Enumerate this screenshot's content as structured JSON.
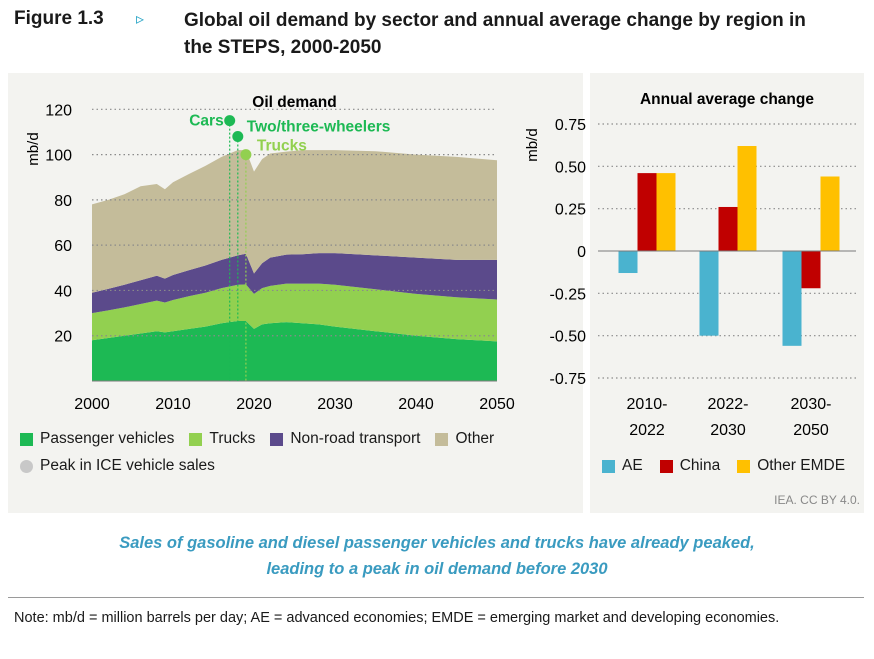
{
  "figure": {
    "label": "Figure 1.3",
    "arrow": "▹",
    "title": "Global oil demand by sector and annual average change by region in the STEPS, 2000-2050"
  },
  "chart_data": [
    {
      "type": "area",
      "title": "Oil demand",
      "ylabel": "mb/d",
      "ylim": [
        0,
        125
      ],
      "xlim": [
        2000,
        2050
      ],
      "yticks": [
        20,
        40,
        60,
        80,
        100,
        120
      ],
      "xticks": [
        2000,
        2010,
        2020,
        2030,
        2040,
        2050
      ],
      "grid": "horizontal dotted",
      "x": [
        2000,
        2002,
        2004,
        2006,
        2008,
        2009,
        2010,
        2012,
        2014,
        2016,
        2018,
        2019,
        2020,
        2021,
        2022,
        2024,
        2026,
        2028,
        2030,
        2035,
        2040,
        2045,
        2050
      ],
      "series": [
        {
          "name": "Passenger vehicles",
          "color": "#1db954",
          "values": [
            18,
            19,
            20,
            21,
            22,
            21.5,
            22,
            23,
            24,
            25.5,
            26.5,
            26.5,
            23,
            25,
            25.5,
            26,
            25.5,
            25,
            24,
            22,
            20,
            18.5,
            17.5
          ]
        },
        {
          "name": "Trucks",
          "color": "#92d050",
          "values": [
            12,
            12.2,
            12.5,
            13,
            13.5,
            13.2,
            13.8,
            14.5,
            15,
            15.5,
            16,
            16.2,
            15.5,
            16,
            16.5,
            17,
            17.5,
            18,
            18.5,
            18.5,
            18.5,
            18.5,
            18.5
          ]
        },
        {
          "name": "Non-road transport",
          "color": "#5b4a8b",
          "values": [
            9,
            9.5,
            10,
            10.5,
            11,
            10.5,
            11,
            11.5,
            12,
            12.5,
            13,
            13.5,
            9,
            11,
            12.5,
            12.8,
            13,
            13.5,
            14,
            15,
            16,
            16.5,
            17.5
          ]
        },
        {
          "name": "Other",
          "color": "#c4bc9a",
          "values": [
            39,
            39.3,
            40,
            41.5,
            40.5,
            39.5,
            41,
            42.5,
            44,
            45.5,
            46.5,
            45.8,
            45,
            46,
            46,
            45.5,
            46,
            45.5,
            45.5,
            46,
            45.5,
            45.5,
            44
          ]
        }
      ],
      "peaks": [
        {
          "label": "Cars",
          "year": 2017,
          "value": 115,
          "color": "#1db954"
        },
        {
          "label": "Two/three-wheelers",
          "year": 2018,
          "value": 108,
          "color": "#1db954"
        },
        {
          "label": "Trucks",
          "year": 2019,
          "value": 100,
          "color": "#92d050"
        }
      ]
    },
    {
      "type": "bar",
      "title": "Annual average change",
      "ylabel": "mb/d",
      "ylim": [
        -0.75,
        0.75
      ],
      "yticks": [
        "0.75",
        "0.50",
        "0.25",
        "0",
        "-0.25",
        "-0.50",
        "-0.75"
      ],
      "categories": [
        [
          "2010-",
          "2022"
        ],
        [
          "2022-",
          "2030"
        ],
        [
          "2030-",
          "2050"
        ]
      ],
      "series": [
        {
          "name": "AE",
          "color": "#4ab3cf",
          "values": [
            -0.13,
            -0.5,
            -0.56
          ]
        },
        {
          "name": "China",
          "color": "#c00000",
          "values": [
            0.46,
            0.26,
            -0.22
          ]
        },
        {
          "name": "Other EMDE",
          "color": "#ffc000",
          "values": [
            0.46,
            0.62,
            0.44
          ]
        }
      ]
    }
  ],
  "legend_left": {
    "items": [
      {
        "label": "Passenger vehicles",
        "color": "#1db954"
      },
      {
        "label": "Trucks",
        "color": "#92d050"
      },
      {
        "label": "Non-road transport",
        "color": "#5b4a8b"
      },
      {
        "label": "Other",
        "color": "#c4bc9a"
      }
    ],
    "peak_label": "Peak in ICE vehicle sales"
  },
  "credit": "IEA. CC BY 4.0.",
  "caption": [
    "Sales of gasoline and diesel passenger vehicles and trucks have already peaked,",
    "leading to a peak in oil demand before 2030"
  ],
  "note": "Note: mb/d = million barrels per day; AE = advanced economies; EMDE = emerging market and developing economies."
}
